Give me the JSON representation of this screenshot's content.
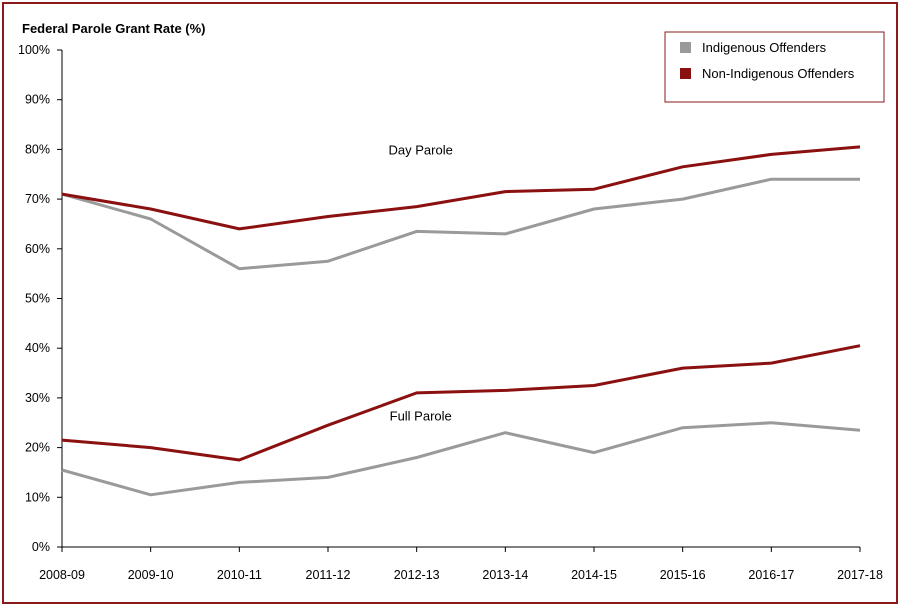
{
  "chart_data": {
    "type": "line",
    "title": "Federal Parole Grant Rate (%)",
    "categories": [
      "2008-09",
      "2009-10",
      "2010-11",
      "2011-12",
      "2012-13",
      "2013-14",
      "2014-15",
      "2015-16",
      "2016-17",
      "2017-18"
    ],
    "y_ticks": [
      "0%",
      "10%",
      "20%",
      "30%",
      "40%",
      "50%",
      "60%",
      "70%",
      "80%",
      "90%",
      "100%"
    ],
    "ylim": [
      0,
      100
    ],
    "legend_position": "top-right",
    "legend": [
      {
        "label": "Indigenous Offenders",
        "color": "#9a9a9a"
      },
      {
        "label": "Non-Indigenous Offenders",
        "color": "#8b1010"
      }
    ],
    "annotations": [
      {
        "text": "Day Parole",
        "x_category": "2012-13",
        "y": 80
      },
      {
        "text": "Full Parole",
        "x_category": "2012-13",
        "y": 26.5
      }
    ],
    "series": [
      {
        "group": "Day Parole",
        "legend_label": "Indigenous Offenders",
        "color": "#9a9a9a",
        "values": [
          71,
          66,
          56,
          57.5,
          63.5,
          63,
          68,
          70,
          74,
          74
        ]
      },
      {
        "group": "Day Parole",
        "legend_label": "Non-Indigenous Offenders",
        "color": "#8b1010",
        "values": [
          71,
          68,
          64,
          66.5,
          68.5,
          71.5,
          72,
          76.5,
          79,
          80.5
        ]
      },
      {
        "group": "Full Parole",
        "legend_label": "Indigenous Offenders",
        "color": "#9a9a9a",
        "values": [
          15.5,
          10.5,
          13,
          14,
          18,
          23,
          19,
          24,
          25,
          23.5
        ]
      },
      {
        "group": "Full Parole",
        "legend_label": "Non-Indigenous Offenders",
        "color": "#8b1010",
        "values": [
          21.5,
          20,
          17.5,
          24.5,
          31,
          31.5,
          32.5,
          36,
          37,
          40.5
        ]
      }
    ]
  }
}
